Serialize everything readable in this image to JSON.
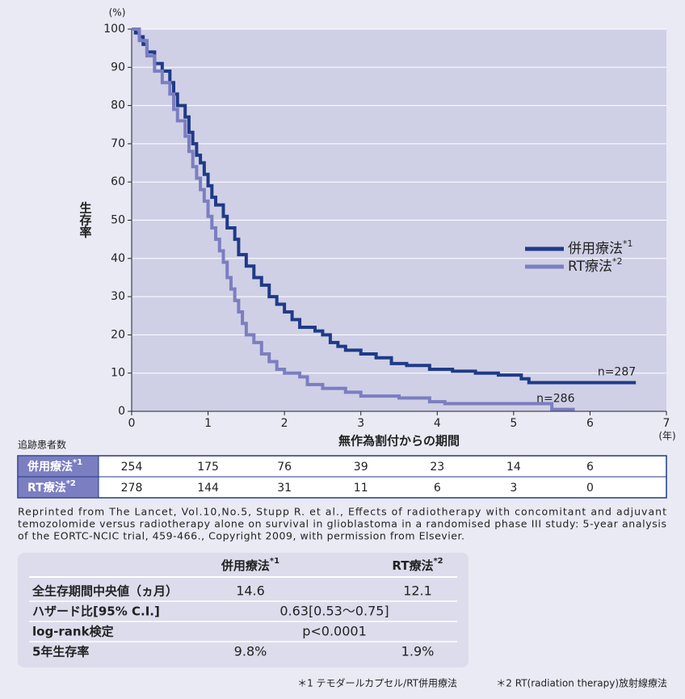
{
  "chart_data": {
    "type": "line",
    "step": true,
    "y_unit": "(%)",
    "x_unit": "(年)",
    "ylabel": "生存率",
    "xlabel": "無作為割付からの期間",
    "xlim": [
      0,
      7
    ],
    "xticks": [
      0,
      1,
      2,
      3,
      4,
      5,
      6,
      7
    ],
    "ylim": [
      0,
      100
    ],
    "yticks": [
      0,
      10,
      20,
      30,
      40,
      50,
      60,
      70,
      80,
      90,
      100
    ],
    "grid": true,
    "legend": "right",
    "series": [
      {
        "name": "併用療法",
        "note": "*1",
        "color": "#1f3a88",
        "end_label": "n=287",
        "x": [
          0,
          0.05,
          0.1,
          0.15,
          0.2,
          0.3,
          0.4,
          0.5,
          0.55,
          0.6,
          0.7,
          0.75,
          0.8,
          0.85,
          0.9,
          0.95,
          1.0,
          1.05,
          1.1,
          1.2,
          1.25,
          1.35,
          1.4,
          1.5,
          1.6,
          1.7,
          1.8,
          1.9,
          2.0,
          2.1,
          2.2,
          2.4,
          2.5,
          2.6,
          2.7,
          2.8,
          3.0,
          3.2,
          3.4,
          3.6,
          3.9,
          4.2,
          4.5,
          4.8,
          5.1,
          5.2,
          6.6
        ],
        "values": [
          100,
          99,
          98,
          96,
          94,
          91,
          89,
          86,
          83,
          80,
          77,
          73,
          70,
          67,
          65,
          62,
          59,
          56,
          54,
          51,
          48,
          45,
          41,
          38,
          35,
          33,
          30,
          28,
          26,
          24,
          22,
          21,
          20,
          18,
          17,
          16,
          15,
          14,
          12.5,
          12,
          11,
          10.5,
          10,
          9.5,
          8.5,
          7.5,
          7.5
        ]
      },
      {
        "name": "RT療法",
        "note": "*2",
        "color": "#7b7ec0",
        "end_label": "n=286",
        "x": [
          0,
          0.1,
          0.2,
          0.3,
          0.4,
          0.5,
          0.55,
          0.6,
          0.7,
          0.75,
          0.8,
          0.85,
          0.9,
          0.95,
          1.0,
          1.05,
          1.1,
          1.15,
          1.2,
          1.25,
          1.3,
          1.35,
          1.4,
          1.45,
          1.5,
          1.6,
          1.7,
          1.8,
          1.9,
          2.0,
          2.2,
          2.3,
          2.5,
          2.8,
          3.0,
          3.5,
          3.9,
          4.1,
          5.5,
          5.8
        ],
        "values": [
          100,
          97,
          93,
          89,
          86,
          83,
          79,
          76,
          72,
          68,
          64,
          61,
          58,
          55,
          51,
          48,
          45,
          42,
          39,
          35,
          32,
          29,
          26,
          23,
          20,
          18,
          15,
          13,
          11,
          10,
          9,
          7,
          6,
          5,
          4,
          3.5,
          2.5,
          2,
          0.5,
          0.5
        ]
      }
    ]
  },
  "risk_table": {
    "title": "追跡患者数",
    "rows": [
      {
        "label": "併用療法",
        "note": "*1",
        "values": [
          "254",
          "175",
          "76",
          "39",
          "23",
          "14",
          "6"
        ]
      },
      {
        "label": "RT療法",
        "note": "*2",
        "values": [
          "278",
          "144",
          "31",
          "11",
          "6",
          "3",
          "0"
        ]
      }
    ]
  },
  "citation": [
    "Reprinted from The Lancet, Vol.10,No.5, Stupp R. et al., Effects of radiotherapy with concomitant and adjuvant",
    "temozolomide versus radiotherapy alone on survival in glioblastoma in a randomised phase III study: 5-year analysis",
    "of the EORTC-NCIC trial, 459-466., Copyright 2009, with permission from Elsevier."
  ],
  "summary_table": {
    "headers": [
      {
        "text": "併用療法",
        "note": "*1"
      },
      {
        "text": "RT療法",
        "note": "*2"
      }
    ],
    "rows": [
      [
        "全生存期間中央値（ヵ月）",
        "14.6",
        "12.1"
      ],
      [
        "ハザード比[95% C.I.]",
        "0.63[0.53〜0.75]"
      ],
      [
        "log-rank検定",
        "p<0.0001"
      ],
      [
        "5年生存率",
        "9.8%",
        "1.9%"
      ]
    ]
  },
  "footnotes": [
    "＊1 テモダールカプセル/RT併用療法",
    "＊2 RT(radiation therapy)放射線療法"
  ]
}
